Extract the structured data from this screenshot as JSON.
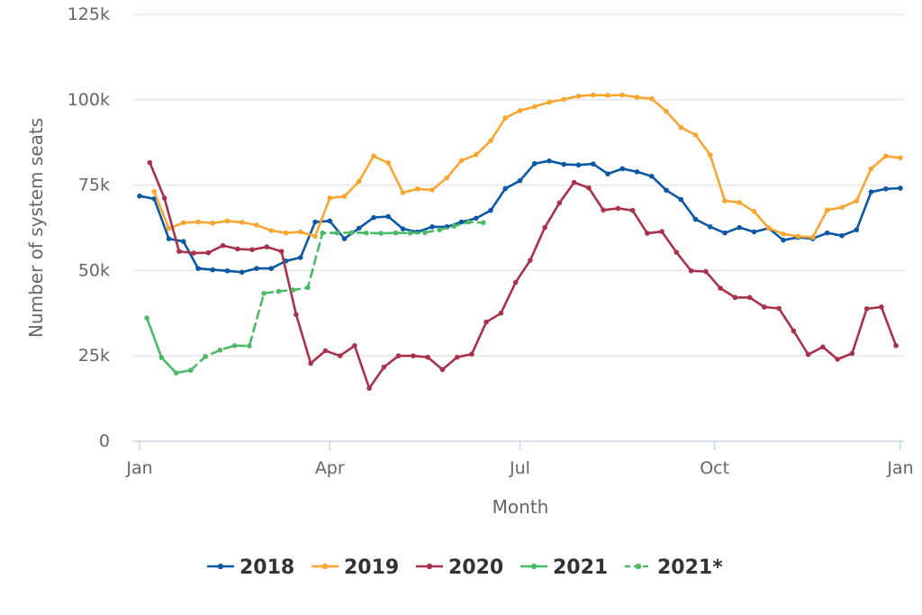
{
  "chart_data": {
    "type": "line",
    "title": "",
    "xlabel": "Month",
    "ylabel": "Number of system seats",
    "xlim": [
      0,
      52
    ],
    "ylim": [
      0,
      125000
    ],
    "x_ticks": [
      {
        "week": 0,
        "label": "Jan"
      },
      {
        "week": 13,
        "label": "Apr"
      },
      {
        "week": 26,
        "label": "Jul"
      },
      {
        "week": 39.3,
        "label": "Oct"
      },
      {
        "week": 52,
        "label": "Jan"
      }
    ],
    "y_ticks": [
      {
        "value": 0,
        "label": "0"
      },
      {
        "value": 25000,
        "label": "25k"
      },
      {
        "value": 50000,
        "label": "50k"
      },
      {
        "value": 75000,
        "label": "75k"
      },
      {
        "value": 100000,
        "label": "100k"
      },
      {
        "value": 125000,
        "label": "125k"
      }
    ],
    "grid": true,
    "legend_position": "bottom",
    "series": [
      {
        "name": "2018",
        "color": "#0b57a4",
        "dashed": false,
        "x": [
          0,
          1,
          2,
          3,
          4,
          5,
          6,
          7,
          8,
          9,
          10,
          11,
          12,
          13,
          14,
          15,
          16,
          17,
          18,
          19,
          20,
          21,
          22,
          23,
          24,
          25,
          26,
          27,
          28,
          29,
          30,
          31,
          32,
          33,
          34,
          35,
          36,
          37,
          38,
          39,
          40,
          41,
          42,
          43,
          44,
          45,
          46,
          47,
          48,
          49,
          50,
          51,
          52
        ],
        "y": [
          71800,
          71000,
          59300,
          58500,
          50600,
          50200,
          49900,
          49500,
          50600,
          50600,
          52800,
          53800,
          64200,
          64500,
          59300,
          62400,
          65500,
          65800,
          62200,
          61300,
          62800,
          62800,
          64200,
          65300,
          67600,
          74000,
          76300,
          81300,
          82100,
          81100,
          80900,
          81200,
          78300,
          79800,
          78900,
          77600,
          73500,
          70800,
          65000,
          62800,
          61000,
          62600,
          61300,
          62400,
          58900,
          59700,
          59300,
          61000,
          60200,
          61900,
          73000,
          73900,
          74100
        ]
      },
      {
        "name": "2019",
        "color": "#f8a631",
        "dashed": false,
        "x": [
          1,
          2,
          3,
          4,
          5,
          6,
          7,
          8,
          9,
          10,
          11,
          12,
          13,
          14,
          15,
          16,
          17,
          18,
          19,
          20,
          21,
          22,
          23,
          24,
          25,
          26,
          27,
          28,
          29,
          30,
          31,
          32,
          33,
          34,
          35,
          36,
          37,
          38,
          39,
          40,
          41,
          42,
          43,
          44,
          45,
          46,
          47,
          48,
          49,
          50,
          51,
          52
        ],
        "y": [
          73100,
          62300,
          64000,
          64200,
          63900,
          64500,
          64100,
          63300,
          61700,
          61000,
          61300,
          60000,
          71200,
          71700,
          76100,
          83500,
          81500,
          72800,
          73900,
          73600,
          77100,
          82200,
          83900,
          88000,
          94700,
          96800,
          98000,
          99300,
          100100,
          101100,
          101400,
          101300,
          101400,
          100700,
          100300,
          96600,
          91900,
          89700,
          83800,
          70400,
          69900,
          67300,
          62400,
          60700,
          60000,
          59700,
          67700,
          68500,
          70400,
          79800,
          83500,
          83000
        ]
      },
      {
        "name": "2020",
        "color": "#a8324b",
        "dashed": false,
        "x": [
          0.7,
          1.7,
          2.7,
          3.7,
          4.7,
          5.7,
          6.7,
          7.7,
          8.7,
          9.7,
          10.7,
          11.7,
          12.7,
          13.7,
          14.7,
          15.7,
          16.7,
          17.7,
          18.7,
          19.7,
          20.7,
          21.7,
          22.7,
          23.7,
          24.7,
          25.7,
          26.7,
          27.7,
          28.7,
          29.7,
          30.7,
          31.7,
          32.7,
          33.7,
          34.7,
          35.7,
          36.7,
          37.7,
          38.7,
          39.7,
          40.7,
          41.7,
          42.7,
          43.7,
          44.7,
          45.7,
          46.7,
          47.7,
          48.7,
          49.7,
          50.7,
          51.7
        ],
        "y": [
          81600,
          71200,
          55600,
          55100,
          55200,
          57300,
          56300,
          56100,
          56900,
          55600,
          37100,
          22800,
          26500,
          25000,
          28000,
          15500,
          21700,
          25000,
          25000,
          24600,
          21000,
          24600,
          25500,
          34900,
          37500,
          46500,
          53000,
          62600,
          69800,
          75800,
          74200,
          67700,
          68200,
          67600,
          60900,
          61400,
          55300,
          49900,
          49700,
          44800,
          42100,
          42100,
          39300,
          38900,
          32300,
          25400,
          27600,
          24000,
          25700,
          38800,
          39300,
          28000
        ]
      },
      {
        "name": "2021",
        "color": "#4db968",
        "dashed": false,
        "x": [
          0.5,
          1.5,
          2.5,
          3.5
        ],
        "y": [
          36100,
          24500,
          20000,
          20800
        ]
      },
      {
        "name": "2021*",
        "color": "#4db968",
        "dashed": true,
        "x": [
          3.5,
          4.5,
          5.5,
          6.5,
          7.5,
          8.5,
          9.5,
          10.5,
          11.5,
          12.5,
          13.5,
          14.5,
          15.5,
          16.5,
          17.5,
          18.5,
          19.5,
          20.5,
          21.5,
          22.5,
          23.5
        ],
        "y": [
          20800,
          24800,
          26700,
          28000,
          27900,
          43300,
          43900,
          44300,
          45000,
          61000,
          61000,
          61100,
          61000,
          60900,
          61000,
          61000,
          61100,
          61900,
          63000,
          64200,
          64000
        ]
      }
    ]
  }
}
